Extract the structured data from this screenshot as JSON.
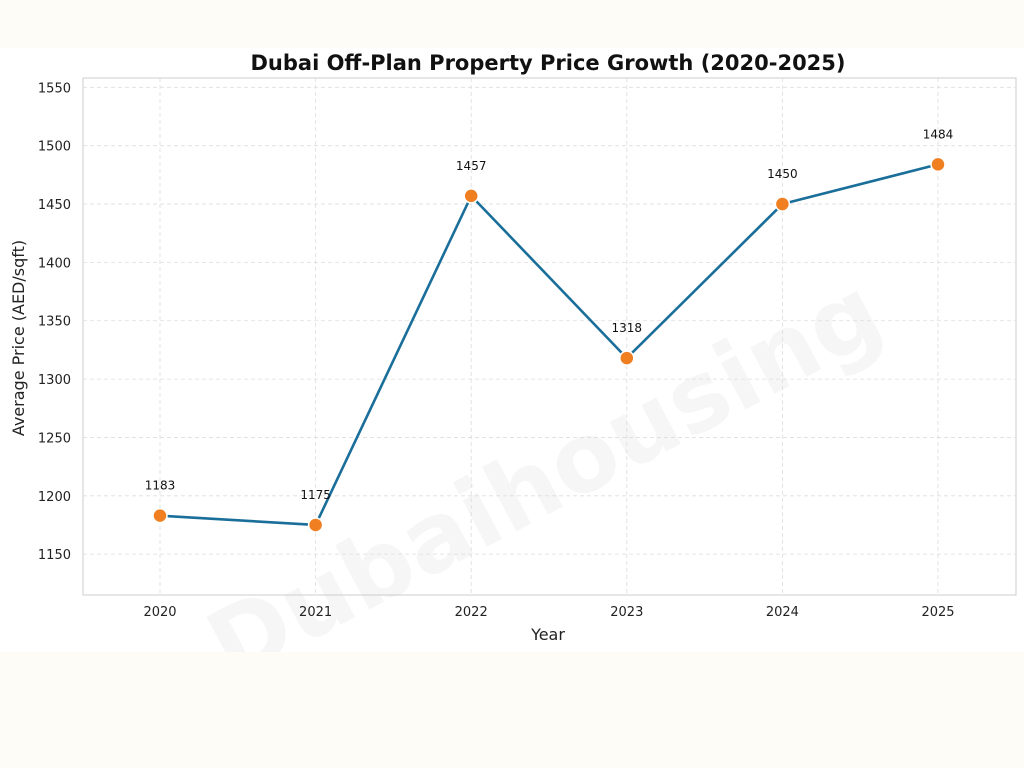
{
  "watermark_text": "Dubaihousing",
  "chart_data": {
    "type": "line",
    "title": "Dubai Off-Plan Property Price Growth (2020-2025)",
    "xlabel": "Year",
    "ylabel": "Average Price (AED/sqft)",
    "categories": [
      "2020",
      "2021",
      "2022",
      "2023",
      "2024",
      "2025"
    ],
    "series": [
      {
        "values": [
          1183,
          1175,
          1457,
          1318,
          1450,
          1484
        ]
      }
    ],
    "data_labels": [
      "1183",
      "1175",
      "1457",
      "1318",
      "1450",
      "1484"
    ],
    "ylim": [
      1115,
      1558
    ],
    "yticks": [
      1150,
      1200,
      1250,
      1300,
      1350,
      1400,
      1450,
      1500,
      1550
    ],
    "grid": true,
    "legend": "none",
    "colors": {
      "line": "#1a6e9a",
      "marker": "#f07f22",
      "marker_edge": "#ffffff"
    }
  }
}
